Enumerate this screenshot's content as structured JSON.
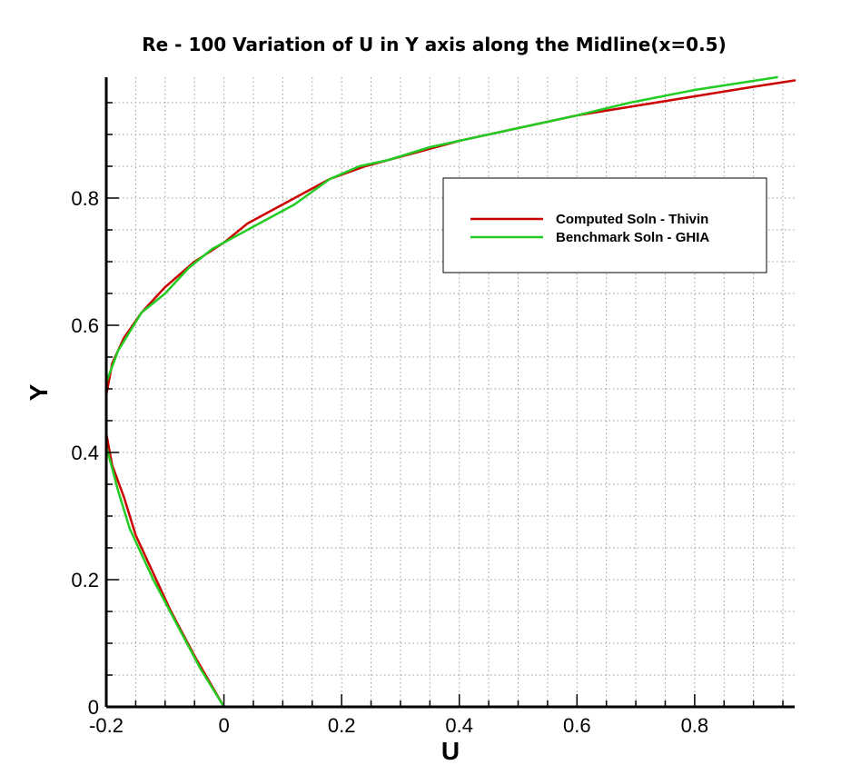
{
  "chart_data": {
    "type": "line",
    "title": "Re - 100 Variation of U in Y axis along the Midline(x=0.5)",
    "xlabel": "U",
    "ylabel": "Y",
    "xlim": [
      -0.2,
      0.97
    ],
    "ylim": [
      0,
      0.99
    ],
    "xticks": [
      -0.2,
      0,
      0.2,
      0.4,
      0.6,
      0.8
    ],
    "xtick_labels": [
      "-0.2",
      "0",
      "0.2",
      "0.4",
      "0.6",
      "0.8"
    ],
    "yticks": [
      0,
      0.2,
      0.4,
      0.6,
      0.8
    ],
    "ytick_labels": [
      "0",
      "0.2",
      "0.4",
      "0.6",
      "0.8"
    ],
    "grid": true,
    "legend_position": "upper-right",
    "series": [
      {
        "name": "Computed Soln - Thivin",
        "color": "#cc0000",
        "x": [
          0.0,
          -0.05,
          -0.09,
          -0.12,
          -0.15,
          -0.17,
          -0.19,
          -0.2,
          -0.2,
          -0.19,
          -0.17,
          -0.14,
          -0.1,
          -0.05,
          0.0,
          0.04,
          0.08,
          0.12,
          0.18,
          0.24,
          0.32,
          0.4,
          0.5,
          0.6,
          0.7,
          0.8,
          0.9,
          0.97
        ],
        "y": [
          0.0,
          0.08,
          0.15,
          0.21,
          0.27,
          0.33,
          0.38,
          0.43,
          0.49,
          0.54,
          0.58,
          0.62,
          0.66,
          0.7,
          0.73,
          0.76,
          0.78,
          0.8,
          0.83,
          0.85,
          0.87,
          0.89,
          0.91,
          0.93,
          0.945,
          0.96,
          0.975,
          0.985
        ]
      },
      {
        "name": "Benchmark Soln - GHIA",
        "color": "#22cc22",
        "x": [
          0.0,
          -0.04,
          -0.08,
          -0.12,
          -0.16,
          -0.18,
          -0.2,
          -0.2,
          -0.18,
          -0.14,
          -0.1,
          -0.06,
          -0.02,
          0.0,
          0.06,
          0.12,
          0.18,
          0.23,
          0.28,
          0.35,
          0.45,
          0.6,
          0.69,
          0.8,
          0.94
        ],
        "y": [
          0.0,
          0.06,
          0.13,
          0.2,
          0.28,
          0.34,
          0.41,
          0.51,
          0.56,
          0.62,
          0.65,
          0.69,
          0.72,
          0.73,
          0.76,
          0.79,
          0.83,
          0.85,
          0.86,
          0.88,
          0.9,
          0.93,
          0.95,
          0.97,
          0.99
        ]
      }
    ]
  }
}
